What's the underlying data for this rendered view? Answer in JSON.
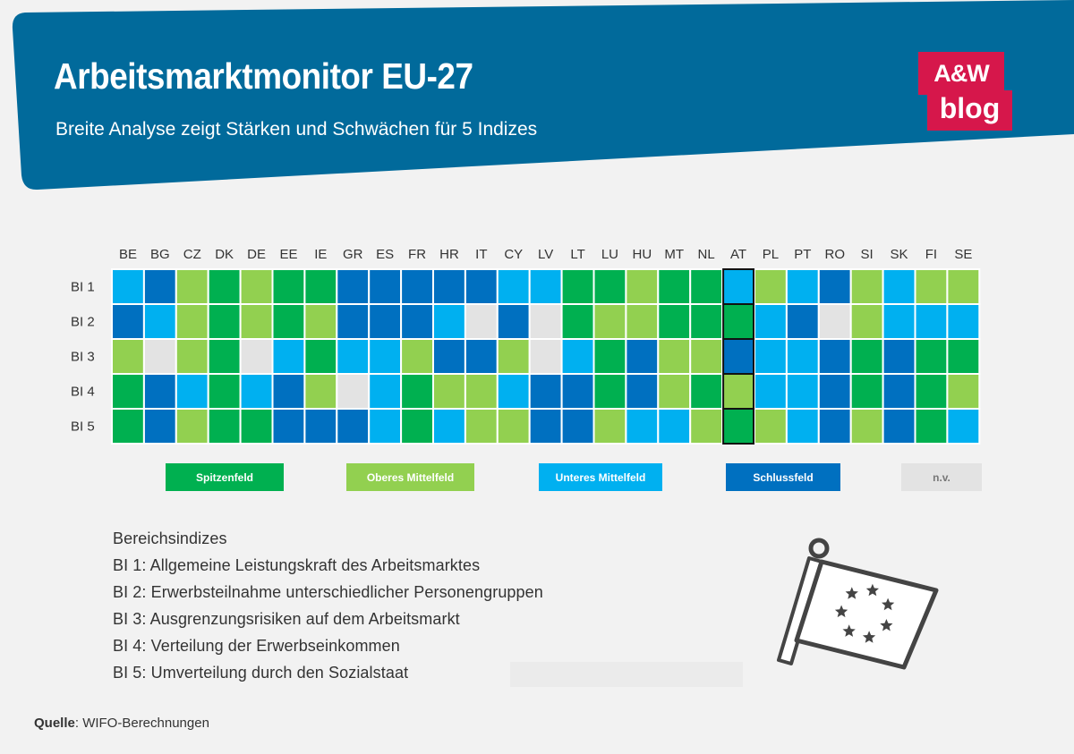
{
  "header": {
    "title": "Arbeitsmarktmonitor EU-27",
    "subtitle": "Breite Analyse zeigt Stärken und Schwächen für 5 Indizes",
    "logo_line1": "A&W",
    "logo_line2": "blog"
  },
  "colors": {
    "header_bg": "#016a9b",
    "logo_bg": "#d6174b",
    "Spitzenfeld": "#00b050",
    "Oberes Mittelfeld": "#92d050",
    "Unteres Mittelfeld": "#00b0f0",
    "Schlussfeld": "#0070c0",
    "n.v.": "#e3e3e3"
  },
  "chart_data": {
    "type": "heatmap",
    "columns": [
      "BE",
      "BG",
      "CZ",
      "DK",
      "DE",
      "EE",
      "IE",
      "GR",
      "ES",
      "FR",
      "HR",
      "IT",
      "CY",
      "LV",
      "LT",
      "LU",
      "HU",
      "MT",
      "NL",
      "AT",
      "PL",
      "PT",
      "RO",
      "SI",
      "SK",
      "FI",
      "SE"
    ],
    "rows": [
      "BI 1",
      "BI 2",
      "BI 3",
      "BI 4",
      "BI 5"
    ],
    "categories": [
      "Spitzenfeld",
      "Oberes Mittelfeld",
      "Unteres Mittelfeld",
      "Schlussfeld",
      "n.v."
    ],
    "values": [
      [
        "Unteres Mittelfeld",
        "Schlussfeld",
        "Oberes Mittelfeld",
        "Spitzenfeld",
        "Oberes Mittelfeld",
        "Spitzenfeld",
        "Spitzenfeld",
        "Schlussfeld",
        "Schlussfeld",
        "Schlussfeld",
        "Schlussfeld",
        "Schlussfeld",
        "Unteres Mittelfeld",
        "Unteres Mittelfeld",
        "Spitzenfeld",
        "Spitzenfeld",
        "Oberes Mittelfeld",
        "Spitzenfeld",
        "Spitzenfeld",
        "Unteres Mittelfeld",
        "Oberes Mittelfeld",
        "Unteres Mittelfeld",
        "Schlussfeld",
        "Oberes Mittelfeld",
        "Unteres Mittelfeld",
        "Oberes Mittelfeld",
        "Oberes Mittelfeld"
      ],
      [
        "Schlussfeld",
        "Unteres Mittelfeld",
        "Oberes Mittelfeld",
        "Spitzenfeld",
        "Oberes Mittelfeld",
        "Spitzenfeld",
        "Oberes Mittelfeld",
        "Schlussfeld",
        "Schlussfeld",
        "Schlussfeld",
        "Unteres Mittelfeld",
        "n.v.",
        "Schlussfeld",
        "n.v.",
        "Spitzenfeld",
        "Oberes Mittelfeld",
        "Oberes Mittelfeld",
        "Spitzenfeld",
        "Spitzenfeld",
        "Spitzenfeld",
        "Unteres Mittelfeld",
        "Schlussfeld",
        "n.v.",
        "Oberes Mittelfeld",
        "Unteres Mittelfeld",
        "Unteres Mittelfeld",
        "Unteres Mittelfeld"
      ],
      [
        "Oberes Mittelfeld",
        "n.v.",
        "Oberes Mittelfeld",
        "Spitzenfeld",
        "n.v.",
        "Unteres Mittelfeld",
        "Spitzenfeld",
        "Unteres Mittelfeld",
        "Unteres Mittelfeld",
        "Oberes Mittelfeld",
        "Schlussfeld",
        "Schlussfeld",
        "Oberes Mittelfeld",
        "n.v.",
        "Unteres Mittelfeld",
        "Spitzenfeld",
        "Schlussfeld",
        "Oberes Mittelfeld",
        "Oberes Mittelfeld",
        "Schlussfeld",
        "Unteres Mittelfeld",
        "Unteres Mittelfeld",
        "Schlussfeld",
        "Spitzenfeld",
        "Schlussfeld",
        "Spitzenfeld",
        "Spitzenfeld"
      ],
      [
        "Spitzenfeld",
        "Schlussfeld",
        "Unteres Mittelfeld",
        "Spitzenfeld",
        "Unteres Mittelfeld",
        "Schlussfeld",
        "Oberes Mittelfeld",
        "n.v.",
        "Unteres Mittelfeld",
        "Spitzenfeld",
        "Oberes Mittelfeld",
        "Oberes Mittelfeld",
        "Unteres Mittelfeld",
        "Schlussfeld",
        "Schlussfeld",
        "Spitzenfeld",
        "Schlussfeld",
        "Oberes Mittelfeld",
        "Spitzenfeld",
        "Oberes Mittelfeld",
        "Unteres Mittelfeld",
        "Unteres Mittelfeld",
        "Schlussfeld",
        "Spitzenfeld",
        "Schlussfeld",
        "Spitzenfeld",
        "Oberes Mittelfeld"
      ],
      [
        "Spitzenfeld",
        "Schlussfeld",
        "Oberes Mittelfeld",
        "Spitzenfeld",
        "Spitzenfeld",
        "Schlussfeld",
        "Schlussfeld",
        "Schlussfeld",
        "Unteres Mittelfeld",
        "Spitzenfeld",
        "Unteres Mittelfeld",
        "Oberes Mittelfeld",
        "Oberes Mittelfeld",
        "Schlussfeld",
        "Schlussfeld",
        "Oberes Mittelfeld",
        "Unteres Mittelfeld",
        "Unteres Mittelfeld",
        "Oberes Mittelfeld",
        "Spitzenfeld",
        "Oberes Mittelfeld",
        "Unteres Mittelfeld",
        "Schlussfeld",
        "Oberes Mittelfeld",
        "Schlussfeld",
        "Spitzenfeld",
        "Unteres Mittelfeld"
      ]
    ],
    "highlight_column": "AT",
    "legend": [
      "Spitzenfeld",
      "Oberes Mittelfeld",
      "Unteres Mittelfeld",
      "Schlussfeld",
      "n.v."
    ],
    "legend_placement": "below"
  },
  "indices": {
    "heading": "Bereichsindizes",
    "items": [
      "BI 1: Allgemeine Leistungskraft des Arbeitsmarktes",
      "BI 2: Erwerbsteilnahme unterschiedlicher Personengruppen",
      "BI 3: Ausgrenzungsrisiken auf dem Arbeitsmarkt",
      "BI 4: Verteilung der Erwerbseinkommen",
      "BI 5: Umverteilung durch den Sozialstaat"
    ]
  },
  "source": {
    "label": "Quelle",
    "text": ": WIFO-Berechnungen"
  },
  "flag_icon": "eu-flag-icon"
}
